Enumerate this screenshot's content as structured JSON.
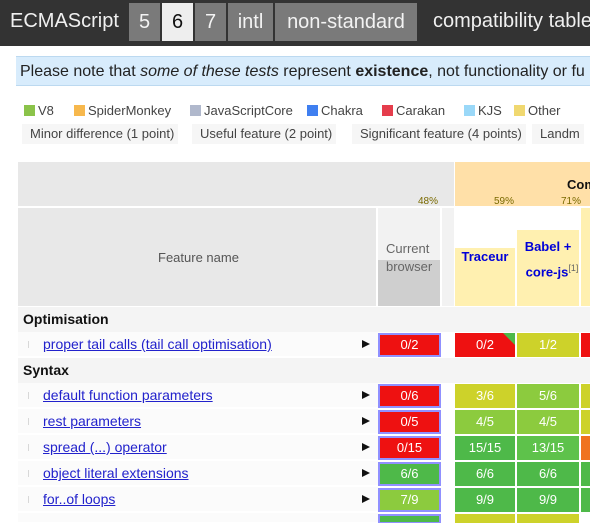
{
  "header": {
    "brand": "ECMAScript",
    "tabs": [
      {
        "label": "5",
        "active": false
      },
      {
        "label": "6",
        "active": true
      },
      {
        "label": "7",
        "active": false
      },
      {
        "label": "intl",
        "active": false
      },
      {
        "label": "non-standard",
        "active": false
      }
    ],
    "page_title": "compatibility table"
  },
  "notice": {
    "part1": "Please note that ",
    "em": "some of these tests",
    "part2": " represent ",
    "strong": "existence",
    "part3": ", not functionality or fu"
  },
  "legend": {
    "engines": [
      {
        "label": "V8",
        "color": "#8bc34a"
      },
      {
        "label": "SpiderMonkey",
        "color": "#f7b84d"
      },
      {
        "label": "JavaScriptCore",
        "color": "#b0b8cc"
      },
      {
        "label": "Chakra",
        "color": "#3f7ff0"
      },
      {
        "label": "Carakan",
        "color": "#e53d4c"
      },
      {
        "label": "KJS",
        "color": "#9ad8f8"
      },
      {
        "label": "Other",
        "color": "#f0d870"
      }
    ],
    "weights": [
      {
        "label": "Minor difference (1 point)"
      },
      {
        "label": "Useful feature (2 point)"
      },
      {
        "label": "Significant feature (4 points)"
      },
      {
        "label": "Landm"
      }
    ]
  },
  "table": {
    "feature_header": "Feature name",
    "current_browser": {
      "line1": "Current",
      "line2": "browser",
      "percent": "48%"
    },
    "compilers_group": "Com",
    "implementations": [
      {
        "name": "Traceur",
        "percent": "59%"
      },
      {
        "name": "Babel +",
        "name2": "core-js",
        "note": "[1]",
        "percent": "71%"
      }
    ],
    "sections": [
      {
        "title": "Optimisation",
        "rows": [
          {
            "feature": "proper tail calls (tail call optimisation)",
            "current": "0/2",
            "traceur": "0/2",
            "babel": "1/2"
          }
        ]
      },
      {
        "title": "Syntax",
        "rows": [
          {
            "feature": "default function parameters",
            "current": "0/6",
            "traceur": "3/6",
            "babel": "5/6"
          },
          {
            "feature": "rest parameters",
            "current": "0/5",
            "traceur": "4/5",
            "babel": "4/5"
          },
          {
            "feature": "spread (...) operator",
            "current": "0/15",
            "traceur": "15/15",
            "babel": "13/15"
          },
          {
            "feature": "object literal extensions",
            "current": "6/6",
            "traceur": "6/6",
            "babel": "6/6"
          },
          {
            "feature": "for..of loops",
            "current": "7/9",
            "traceur": "9/9",
            "babel": "9/9"
          }
        ]
      }
    ]
  }
}
